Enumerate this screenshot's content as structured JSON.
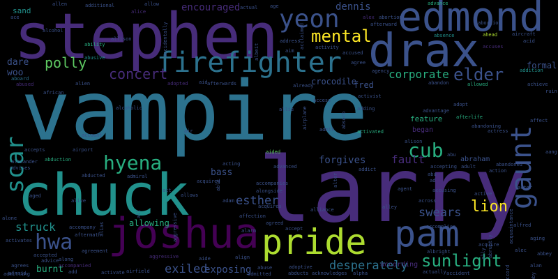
{
  "colors": {
    "background": "#000000",
    "dark_purple": "#440154",
    "purple": "#472c7a",
    "indigo": "#3b528b",
    "blue": "#2c728e",
    "teal": "#21918c",
    "green": "#28ae80",
    "lime": "#5ec962",
    "yellow_green": "#addc30",
    "yellow": "#fde725"
  },
  "words": [
    {
      "text": "vampire",
      "color": "blue"
    },
    {
      "text": "larry",
      "color": "purple"
    },
    {
      "text": "chuck",
      "color": "teal"
    },
    {
      "text": "stephen",
      "color": "purple"
    },
    {
      "text": "joshua",
      "color": "dark_purple"
    },
    {
      "text": "drax",
      "color": "indigo"
    },
    {
      "text": "edmond",
      "color": "indigo"
    },
    {
      "text": "pride",
      "color": "yellow_green"
    },
    {
      "text": "pam",
      "color": "indigo"
    },
    {
      "text": "firefighter",
      "color": "blue"
    },
    {
      "text": "gaunt",
      "color": "indigo"
    },
    {
      "text": "yeon",
      "color": "indigo"
    },
    {
      "text": "scar",
      "color": "teal"
    },
    {
      "text": "hyena",
      "color": "green"
    },
    {
      "text": "mental",
      "color": "yellow"
    },
    {
      "text": "concert",
      "color": "purple"
    },
    {
      "text": "cub",
      "color": "green"
    },
    {
      "text": "hwa",
      "color": "indigo"
    },
    {
      "text": "sunlight",
      "color": "green"
    },
    {
      "text": "elder",
      "color": "indigo"
    },
    {
      "text": "polly",
      "color": "lime"
    },
    {
      "text": "corporate",
      "color": "green"
    },
    {
      "text": "lion",
      "color": "yellow"
    },
    {
      "text": "desperately",
      "color": "blue"
    },
    {
      "text": "struck",
      "color": "teal"
    },
    {
      "text": "exiled",
      "color": "indigo"
    },
    {
      "text": "esther",
      "color": "indigo"
    },
    {
      "text": "fault",
      "color": "purple"
    },
    {
      "text": "swears",
      "color": "indigo"
    },
    {
      "text": "forgives",
      "color": "indigo"
    },
    {
      "text": "exposing",
      "color": "indigo"
    },
    {
      "text": "allowing",
      "color": "green"
    },
    {
      "text": "encouraged",
      "color": "purple"
    },
    {
      "text": "dennis",
      "color": "indigo"
    },
    {
      "text": "crocodile",
      "color": "indigo"
    },
    {
      "text": "fred",
      "color": "indigo"
    },
    {
      "text": "dare",
      "color": "indigo"
    },
    {
      "text": "woo",
      "color": "indigo"
    },
    {
      "text": "bass",
      "color": "indigo"
    },
    {
      "text": "burnt",
      "color": "green"
    },
    {
      "text": "feature",
      "color": "green"
    },
    {
      "text": "began",
      "color": "purple"
    },
    {
      "text": "according",
      "color": "purple"
    },
    {
      "text": "abraham",
      "color": "indigo"
    },
    {
      "text": "sand",
      "color": "teal"
    },
    {
      "text": "allen",
      "color": "indigo"
    },
    {
      "text": "additional",
      "color": "indigo"
    },
    {
      "text": "alice",
      "color": "purple"
    },
    {
      "text": "allow",
      "color": "indigo"
    },
    {
      "text": "actual",
      "color": "indigo"
    },
    {
      "text": "age",
      "color": "indigo"
    },
    {
      "text": "advance",
      "color": "green"
    },
    {
      "text": "alex",
      "color": "purple"
    },
    {
      "text": "abortion",
      "color": "indigo"
    },
    {
      "text": "afterward",
      "color": "indigo"
    },
    {
      "text": "absence",
      "color": "teal"
    },
    {
      "text": "ahead",
      "color": "yellow_green"
    },
    {
      "text": "aircraft",
      "color": "indigo"
    },
    {
      "text": "accuses",
      "color": "purple"
    },
    {
      "text": "formal",
      "color": "indigo"
    },
    {
      "text": "alcohol",
      "color": "indigo"
    },
    {
      "text": "ability",
      "color": "green"
    },
    {
      "text": "allison",
      "color": "indigo"
    },
    {
      "text": "abusive",
      "color": "teal"
    },
    {
      "text": "african",
      "color": "indigo"
    },
    {
      "text": "aboard",
      "color": "blue"
    },
    {
      "text": "abused",
      "color": "purple"
    },
    {
      "text": "alien",
      "color": "indigo"
    },
    {
      "text": "adopted",
      "color": "purple"
    },
    {
      "text": "aid",
      "color": "indigo"
    },
    {
      "text": "afterwards",
      "color": "indigo"
    },
    {
      "text": "alcoholic",
      "color": "indigo"
    },
    {
      "text": "already",
      "color": "indigo"
    },
    {
      "text": "access",
      "color": "indigo"
    },
    {
      "text": "adding",
      "color": "indigo"
    },
    {
      "text": "activist",
      "color": "indigo"
    },
    {
      "text": "agree",
      "color": "indigo"
    },
    {
      "text": "agency",
      "color": "indigo"
    },
    {
      "text": "accused",
      "color": "indigo"
    },
    {
      "text": "activity",
      "color": "indigo"
    },
    {
      "text": "address",
      "color": "indigo"
    },
    {
      "text": "aim",
      "color": "indigo"
    },
    {
      "text": "allowed",
      "color": "green"
    },
    {
      "text": "abandon",
      "color": "indigo"
    },
    {
      "text": "adopt",
      "color": "indigo"
    },
    {
      "text": "advantage",
      "color": "indigo"
    },
    {
      "text": "afterlife",
      "color": "green"
    },
    {
      "text": "abandoning",
      "color": "indigo"
    },
    {
      "text": "actress",
      "color": "indigo"
    },
    {
      "text": "addition",
      "color": "teal"
    },
    {
      "text": "achieve",
      "color": "indigo"
    },
    {
      "text": "ruin",
      "color": "indigo"
    },
    {
      "text": "affect",
      "color": "indigo"
    },
    {
      "text": "accepts",
      "color": "indigo"
    },
    {
      "text": "airport",
      "color": "indigo"
    },
    {
      "text": "account",
      "color": "indigo"
    },
    {
      "text": "air",
      "color": "indigo"
    },
    {
      "text": "aided",
      "color": "lime"
    },
    {
      "text": "admit",
      "color": "indigo"
    },
    {
      "text": "activated",
      "color": "green"
    },
    {
      "text": "alexander",
      "color": "indigo"
    },
    {
      "text": "advises",
      "color": "indigo"
    },
    {
      "text": "abduction",
      "color": "green"
    },
    {
      "text": "abducted",
      "color": "indigo"
    },
    {
      "text": "admiral",
      "color": "indigo"
    },
    {
      "text": "acquired",
      "color": "indigo"
    },
    {
      "text": "acting",
      "color": "indigo"
    },
    {
      "text": "advanced",
      "color": "indigo"
    },
    {
      "text": "addict",
      "color": "indigo"
    },
    {
      "text": "accepting",
      "color": "indigo"
    },
    {
      "text": "action",
      "color": "indigo"
    },
    {
      "text": "abandoned",
      "color": "indigo"
    },
    {
      "text": "adult",
      "color": "indigo"
    },
    {
      "text": "abu",
      "color": "indigo"
    },
    {
      "text": "aged",
      "color": "indigo"
    },
    {
      "text": "alive",
      "color": "indigo"
    },
    {
      "text": "act",
      "color": "indigo"
    },
    {
      "text": "allows",
      "color": "indigo"
    },
    {
      "text": "adam",
      "color": "indigo"
    },
    {
      "text": "accompanies",
      "color": "indigo"
    },
    {
      "text": "alongside",
      "color": "indigo"
    },
    {
      "text": "acquires",
      "color": "indigo"
    },
    {
      "text": "agent",
      "color": "indigo"
    },
    {
      "text": "accusing",
      "color": "indigo"
    },
    {
      "text": "actor",
      "color": "indigo"
    },
    {
      "text": "alliance",
      "color": "indigo"
    },
    {
      "text": "alley",
      "color": "indigo"
    },
    {
      "text": "accomplice",
      "color": "indigo"
    },
    {
      "text": "alfred",
      "color": "indigo"
    },
    {
      "text": "accompany",
      "color": "indigo"
    },
    {
      "text": "aftermath",
      "color": "indigo"
    },
    {
      "text": "affection",
      "color": "indigo"
    },
    {
      "text": "alarm",
      "color": "indigo"
    },
    {
      "text": "agreed",
      "color": "indigo"
    },
    {
      "text": "accept",
      "color": "indigo"
    },
    {
      "text": "acquire",
      "color": "indigo"
    },
    {
      "text": "aging",
      "color": "indigo"
    },
    {
      "text": "alone",
      "color": "indigo"
    },
    {
      "text": "activates",
      "color": "indigo"
    },
    {
      "text": "agreement",
      "color": "indigo"
    },
    {
      "text": "accepted",
      "color": "indigo"
    },
    {
      "text": "advice",
      "color": "indigo"
    },
    {
      "text": "along",
      "color": "indigo"
    },
    {
      "text": "agrees",
      "color": "indigo"
    },
    {
      "text": "accompanied",
      "color": "purple"
    },
    {
      "text": "add",
      "color": "indigo"
    },
    {
      "text": "admitting",
      "color": "indigo"
    },
    {
      "text": "aggressive",
      "color": "purple"
    },
    {
      "text": "activate",
      "color": "indigo"
    },
    {
      "text": "airfield",
      "color": "indigo"
    },
    {
      "text": "aide",
      "color": "indigo"
    },
    {
      "text": "align",
      "color": "indigo"
    },
    {
      "text": "admitted",
      "color": "indigo"
    },
    {
      "text": "abuse",
      "color": "indigo"
    },
    {
      "text": "adoptive",
      "color": "indigo"
    },
    {
      "text": "abducts",
      "color": "indigo"
    },
    {
      "text": "acknowledges",
      "color": "indigo"
    },
    {
      "text": "alpha",
      "color": "indigo"
    },
    {
      "text": "albright",
      "color": "indigo"
    },
    {
      "text": "actually",
      "color": "indigo"
    },
    {
      "text": "accident",
      "color": "indigo"
    },
    {
      "text": "alec",
      "color": "indigo"
    },
    {
      "text": "abbey",
      "color": "indigo"
    },
    {
      "text": "ace",
      "color": "indigo"
    },
    {
      "text": "alan",
      "color": "indigo"
    },
    {
      "text": "abu",
      "color": "indigo"
    },
    {
      "text": "ad",
      "color": "indigo"
    },
    {
      "text": "aang",
      "color": "indigo"
    },
    {
      "text": "accidentally",
      "color": "indigo"
    },
    {
      "text": "airplane",
      "color": "indigo"
    },
    {
      "text": "absorb",
      "color": "indigo"
    },
    {
      "text": "acclaimed",
      "color": "indigo"
    },
    {
      "text": "aggressive",
      "color": "indigo"
    },
    {
      "text": "abruptly",
      "color": "indigo"
    },
    {
      "text": "acquaintance",
      "color": "indigo"
    },
    {
      "text": "abby",
      "color": "indigo"
    },
    {
      "text": "alter",
      "color": "indigo"
    },
    {
      "text": "ally",
      "color": "indigo"
    },
    {
      "text": "alias",
      "color": "indigo"
    },
    {
      "text": "all",
      "color": "indigo"
    },
    {
      "text": "allie",
      "color": "indigo"
    },
    {
      "text": "able",
      "color": "indigo"
    },
    {
      "text": "alison",
      "color": "indigo"
    },
    {
      "text": "acid",
      "color": "indigo"
    },
    {
      "text": "across",
      "color": "indigo"
    },
    {
      "text": "accord",
      "color": "indigo"
    },
    {
      "text": "albeit",
      "color": "indigo"
    },
    {
      "text": "abortion",
      "color": "indigo"
    },
    {
      "text": "afraid",
      "color": "indigo"
    },
    {
      "text": "active",
      "color": "indigo"
    }
  ]
}
